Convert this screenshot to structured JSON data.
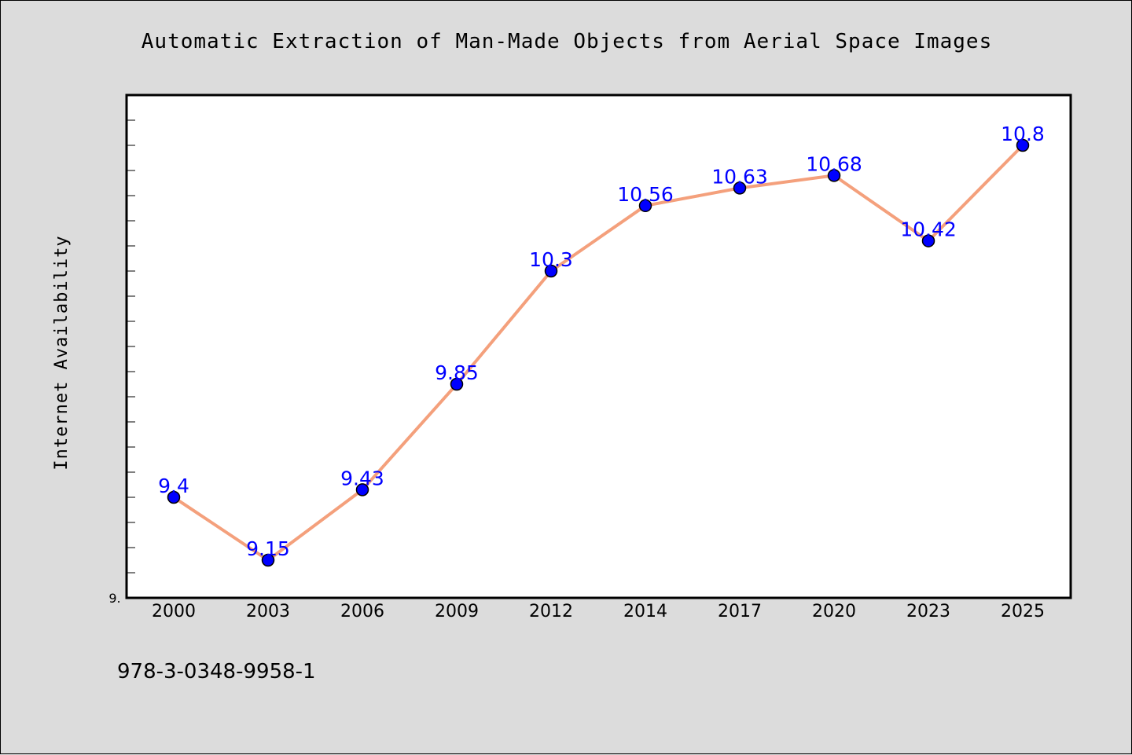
{
  "colors": {
    "background": "#dcdcdc",
    "plot_background": "#ffffff",
    "line": "#f4a07c",
    "marker": "#0000ff",
    "data_label": "#0000ff"
  },
  "footer": {
    "isbn": "978-3-0348-9958-1"
  },
  "chart_data": {
    "type": "line",
    "title": "Automatic Extraction of Man-Made Objects from Aerial Space Images",
    "xlabel": "",
    "ylabel": "Internet Availability",
    "categories": [
      "2000",
      "2003",
      "2006",
      "2009",
      "2012",
      "2014",
      "2017",
      "2020",
      "2023",
      "2025"
    ],
    "series": [
      {
        "values": [
          9.4,
          9.15,
          9.43,
          9.85,
          10.3,
          10.56,
          10.63,
          10.68,
          10.42,
          10.8
        ]
      }
    ],
    "data_labels": [
      "9.4",
      "9.15",
      "9.43",
      "9.85",
      "10.3",
      "10.56",
      "10.63",
      "10.68",
      "10.42",
      "10.8"
    ],
    "ylim": [
      9.0,
      11.0
    ],
    "y_tick_label_min": "9.",
    "grid": false,
    "legend": "none"
  }
}
